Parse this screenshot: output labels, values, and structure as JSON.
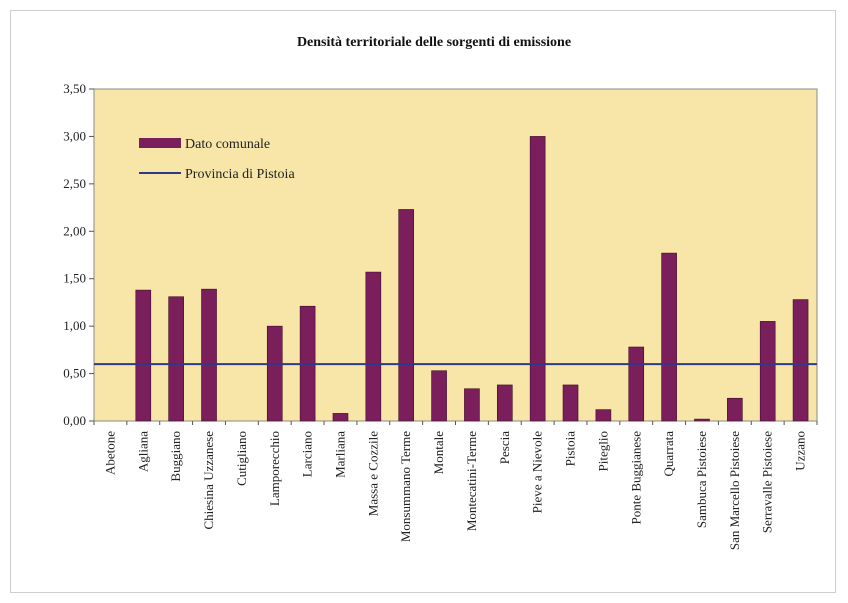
{
  "chart_data": {
    "type": "bar",
    "title": "Densità territoriale delle sorgenti di emissione",
    "xlabel": "",
    "ylabel": "",
    "ylim": [
      0,
      3.5
    ],
    "yticks": [
      "0,00",
      "0,50",
      "1,00",
      "1,50",
      "2,00",
      "2,50",
      "3,00",
      "3,50"
    ],
    "ytick_values": [
      0,
      0.5,
      1.0,
      1.5,
      2.0,
      2.5,
      3.0,
      3.5
    ],
    "categories": [
      "Abetone",
      "Agliana",
      "Buggiano",
      "Chiesina Uzzanese",
      "Cutigliano",
      "Lamporecchio",
      "Larciano",
      "Marliana",
      "Massa e Cozzile",
      "Monsummano Terme",
      "Montale",
      "Montecatini-Terme",
      "Pescia",
      "Pieve a Nievole",
      "Pistoia",
      "Piteglio",
      "Ponte Buggianese",
      "Quarrata",
      "Sambuca Pistoiese",
      "San Marcello Pistoiese",
      "Serravalle Pistoiese",
      "Uzzano"
    ],
    "series": [
      {
        "name": "Dato comunale",
        "kind": "bar",
        "color": "#7b1f5c",
        "values": [
          0,
          1.38,
          1.31,
          1.39,
          0,
          1.0,
          1.21,
          0.08,
          1.57,
          2.23,
          0.53,
          0.34,
          0.38,
          3.0,
          0.38,
          0.12,
          0.78,
          1.77,
          0.02,
          0.24,
          1.05,
          1.28
        ]
      },
      {
        "name": "Provincia di Pistoia",
        "kind": "line",
        "color": "#2e3a87",
        "value": 0.6
      }
    ],
    "grid": false,
    "legend_position": "top-left",
    "plot_background": "#f7e6a7"
  }
}
